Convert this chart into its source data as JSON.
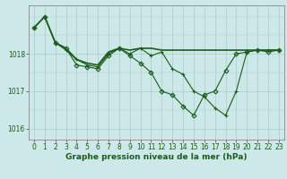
{
  "title": "Graphe pression niveau de la mer (hPa)",
  "background_color": "#cce8e8",
  "plot_bg_color": "#cce8e8",
  "grid_color": "#aacccc",
  "line_color": "#1a5c1a",
  "marker_color": "#1a5c1a",
  "xlim": [
    -0.5,
    23.5
  ],
  "ylim": [
    1015.7,
    1019.3
  ],
  "yticks": [
    1016,
    1017,
    1018
  ],
  "xticks": [
    0,
    1,
    2,
    3,
    4,
    5,
    6,
    7,
    8,
    9,
    10,
    11,
    12,
    13,
    14,
    15,
    16,
    17,
    18,
    19,
    20,
    21,
    22,
    23
  ],
  "series": [
    {
      "x": [
        0,
        1,
        2,
        3,
        4,
        5,
        6,
        7,
        8,
        9,
        10,
        11,
        12,
        13,
        14,
        15,
        16,
        17,
        18,
        19,
        20,
        21,
        22,
        23
      ],
      "y": [
        1018.7,
        1019.0,
        1018.3,
        1018.1,
        1017.85,
        1017.7,
        1017.65,
        1018.0,
        1018.15,
        1018.0,
        1018.15,
        1017.95,
        1018.05,
        1017.6,
        1017.45,
        1017.0,
        1016.85,
        1016.55,
        1016.35,
        1017.0,
        1018.05,
        1018.1,
        1018.1,
        1018.1
      ],
      "lw": 0.8,
      "marker": "+"
    },
    {
      "x": [
        0,
        1,
        2,
        3,
        4,
        5,
        6,
        7,
        8,
        9,
        10,
        11,
        12,
        13,
        14,
        15,
        16,
        17,
        18,
        19,
        20,
        21,
        22,
        23
      ],
      "y": [
        1018.7,
        1019.0,
        1018.3,
        1018.15,
        1017.7,
        1017.65,
        1017.6,
        1017.95,
        1018.15,
        1017.95,
        1017.75,
        1017.5,
        1017.0,
        1016.9,
        1016.6,
        1016.35,
        1016.9,
        1017.0,
        1017.55,
        1018.0,
        1018.05,
        1018.1,
        1018.05,
        1018.1
      ],
      "lw": 0.8,
      "marker": "D"
    },
    {
      "x": [
        0,
        1,
        2,
        3,
        4,
        5,
        6,
        7,
        8,
        9,
        10,
        11,
        12,
        13,
        14,
        15,
        16,
        17,
        18,
        19,
        20,
        21,
        22,
        23
      ],
      "y": [
        1018.7,
        1019.0,
        1018.3,
        1018.15,
        1017.85,
        1017.75,
        1017.7,
        1018.05,
        1018.15,
        1018.1,
        1018.15,
        1018.15,
        1018.1,
        1018.1,
        1018.1,
        1018.1,
        1018.1,
        1018.1,
        1018.1,
        1018.1,
        1018.1,
        1018.1,
        1018.1,
        1018.1
      ],
      "lw": 1.2,
      "marker": null
    }
  ],
  "tick_fontsize": 5.5,
  "xlabel_fontsize": 6.5
}
